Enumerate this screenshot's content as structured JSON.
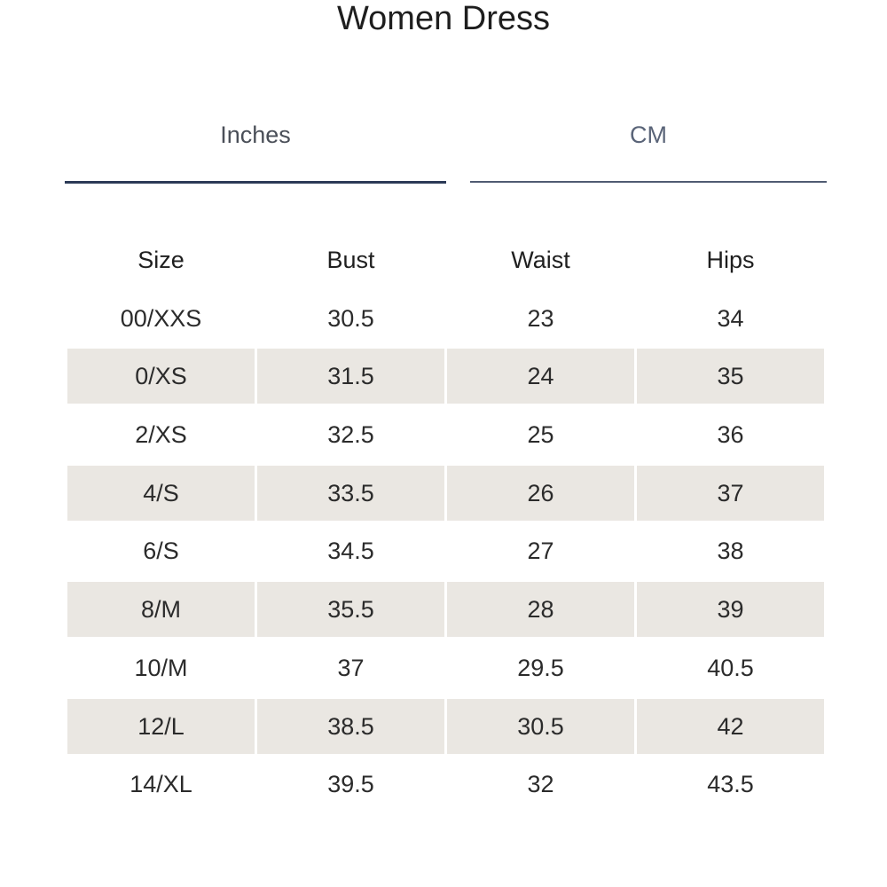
{
  "title": "Women Dress",
  "tabs": [
    {
      "label": "Inches",
      "active": true
    },
    {
      "label": "CM",
      "active": false
    }
  ],
  "colors": {
    "active_tab_underline": "#2c3a57",
    "inactive_tab_underline": "#4f5b72",
    "shaded_row": "#eae7e2"
  },
  "table": {
    "headers": [
      "Size",
      "Bust",
      "Waist",
      "Hips"
    ],
    "rows": [
      [
        "00/XXS",
        "30.5",
        "23",
        "34"
      ],
      [
        "0/XS",
        "31.5",
        "24",
        "35"
      ],
      [
        "2/XS",
        "32.5",
        "25",
        "36"
      ],
      [
        "4/S",
        "33.5",
        "26",
        "37"
      ],
      [
        "6/S",
        "34.5",
        "27",
        "38"
      ],
      [
        "8/M",
        "35.5",
        "28",
        "39"
      ],
      [
        "10/M",
        "37",
        "29.5",
        "40.5"
      ],
      [
        "12/L",
        "38.5",
        "30.5",
        "42"
      ],
      [
        "14/XL",
        "39.5",
        "32",
        "43.5"
      ]
    ]
  }
}
